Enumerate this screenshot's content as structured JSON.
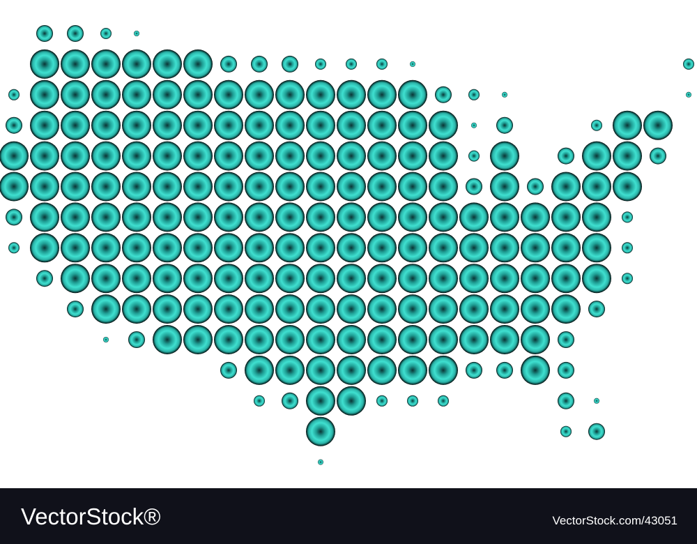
{
  "footer": {
    "brand": "VectorStock®",
    "url": "VectorStock.com/43051"
  }
}
